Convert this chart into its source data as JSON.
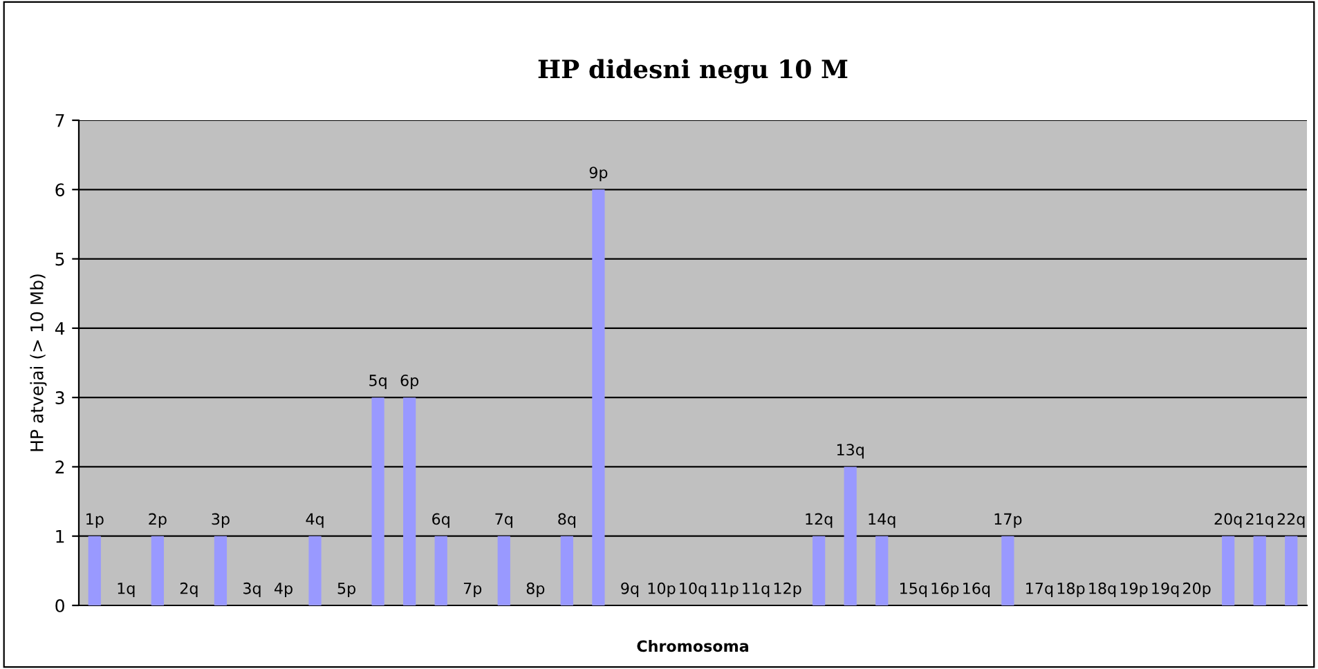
{
  "chart_data": {
    "type": "bar",
    "title": "HP didesni negu 10 M",
    "xlabel": "Chromosoma",
    "ylabel": "HP atvejai (> 10 Mb)",
    "categories": [
      "1p",
      "1q",
      "2p",
      "2q",
      "3p",
      "3q",
      "4p",
      "4q",
      "5p",
      "5q",
      "6p",
      "6q",
      "7p",
      "7q",
      "8p",
      "8q",
      "9p",
      "9q",
      "10p",
      "10q",
      "11p",
      "11q",
      "12p",
      "12q",
      "13q",
      "14q",
      "15q",
      "16p",
      "16q",
      "17p",
      "17q",
      "18p",
      "18q",
      "19p",
      "19q",
      "20p",
      "20q",
      "21q",
      "22q"
    ],
    "values": [
      1,
      0,
      1,
      0,
      1,
      0,
      0,
      1,
      0,
      3,
      3,
      1,
      0,
      1,
      0,
      1,
      6,
      0,
      0,
      0,
      0,
      0,
      0,
      1,
      2,
      1,
      0,
      0,
      0,
      1,
      0,
      0,
      0,
      0,
      0,
      0,
      1,
      1,
      1
    ],
    "color": "#9999ff",
    "ylim": [
      0,
      7
    ],
    "yticks": [
      0,
      1,
      2,
      3,
      4,
      5,
      6,
      7
    ],
    "grid": "y",
    "legend": false
  }
}
